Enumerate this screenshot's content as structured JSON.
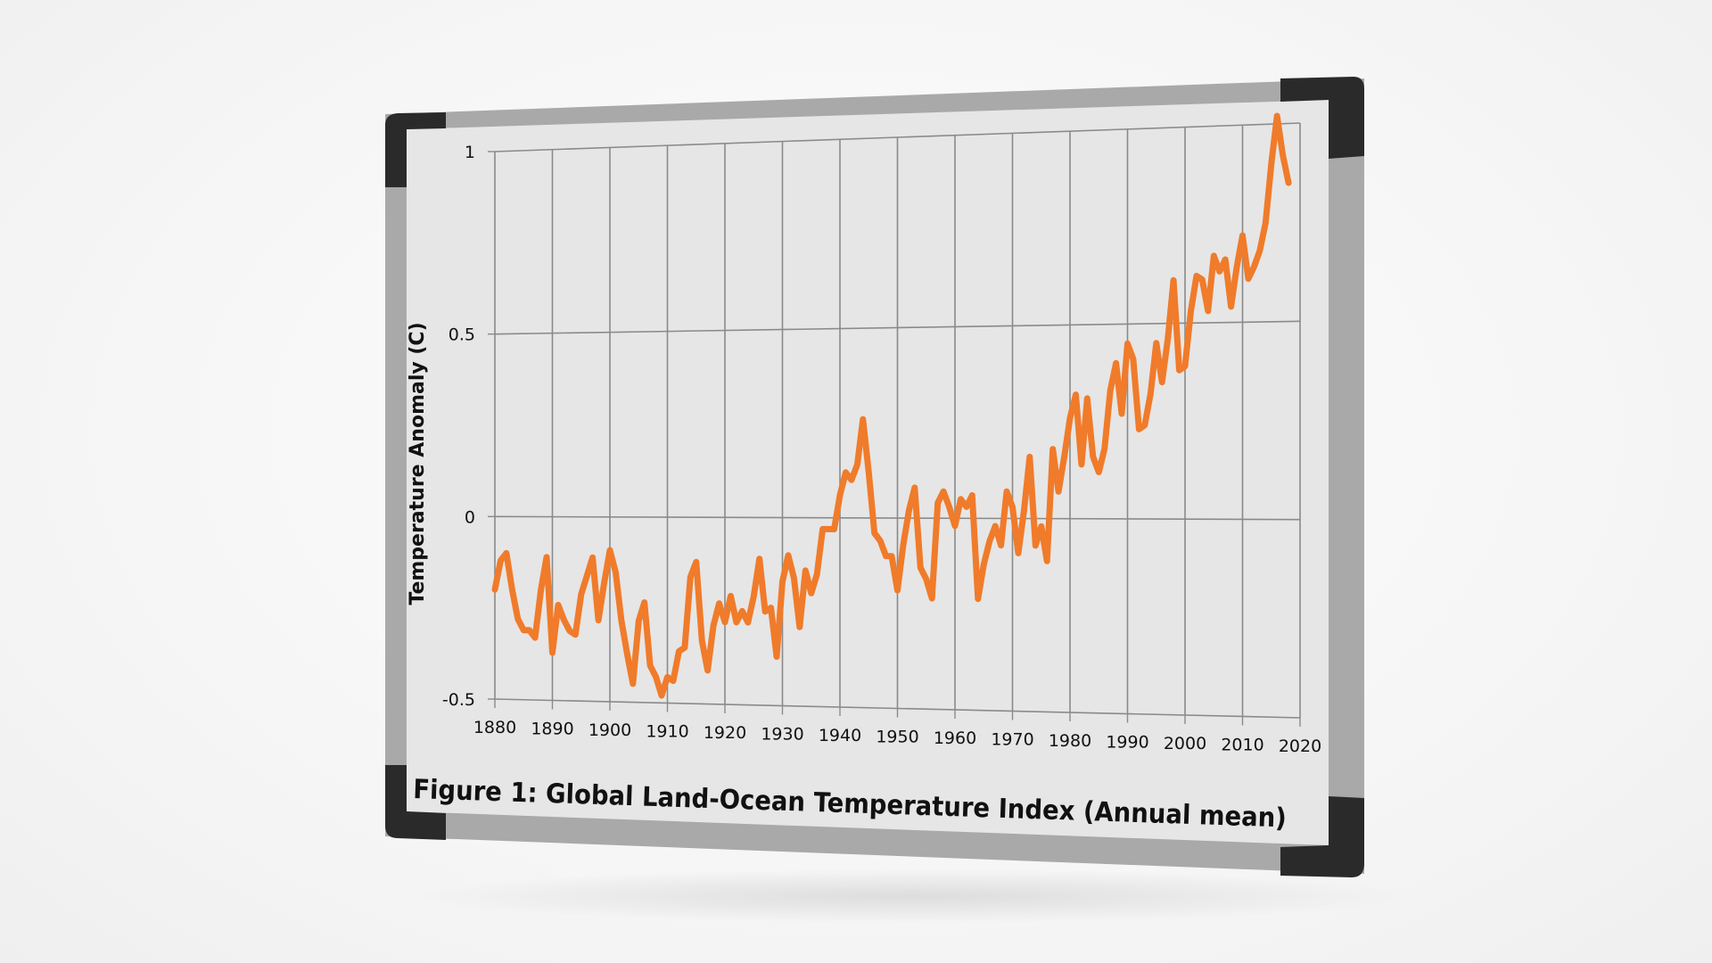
{
  "colors": {
    "line": "#f07b2a",
    "frame": "#a9a9a9",
    "corner": "#2a2a2a",
    "board": "#e6e6e6",
    "grid": "#8a8a8a",
    "text": "#111111"
  },
  "caption": "Figure 1: Global Land-Ocean Temperature Index (Annual mean)",
  "chart_data": {
    "type": "line",
    "title": "Figure 1: Global Land-Ocean Temperature Index (Annual mean)",
    "xlabel": "",
    "ylabel": "Temperature Anomaly (C)",
    "xlim": [
      1880,
      2020
    ],
    "ylim": [
      -0.5,
      1
    ],
    "grid": true,
    "legend": "none",
    "x_ticks": [
      "1880",
      "1890",
      "1900",
      "1910",
      "1920",
      "1930",
      "1940",
      "1950",
      "1960",
      "1970",
      "1980",
      "1990",
      "2000",
      "2010",
      "2020"
    ],
    "y_ticks": [
      "-0.5",
      "0",
      "0.5",
      "1"
    ],
    "series": [
      {
        "x": [
          1880,
          1881,
          1882,
          1883,
          1884,
          1885,
          1886,
          1887,
          1888,
          1889,
          1890,
          1891,
          1892,
          1893,
          1894,
          1895,
          1896,
          1897,
          1898,
          1899,
          1900,
          1901,
          1902,
          1903,
          1904,
          1905,
          1906,
          1907,
          1908,
          1909,
          1910,
          1911,
          1912,
          1913,
          1914,
          1915,
          1916,
          1917,
          1918,
          1919,
          1920,
          1921,
          1922,
          1923,
          1924,
          1925,
          1926,
          1927,
          1928,
          1929,
          1930,
          1931,
          1932,
          1933,
          1934,
          1935,
          1936,
          1937,
          1938,
          1939,
          1940,
          1941,
          1942,
          1943,
          1944,
          1945,
          1946,
          1947,
          1948,
          1949,
          1950,
          1951,
          1952,
          1953,
          1954,
          1955,
          1956,
          1957,
          1958,
          1959,
          1960,
          1961,
          1962,
          1963,
          1964,
          1965,
          1966,
          1967,
          1968,
          1969,
          1970,
          1971,
          1972,
          1973,
          1974,
          1975,
          1976,
          1977,
          1978,
          1979,
          1980,
          1981,
          1982,
          1983,
          1984,
          1985,
          1986,
          1987,
          1988,
          1989,
          1990,
          1991,
          1992,
          1993,
          1994,
          1995,
          1996,
          1997,
          1998,
          1999,
          2000,
          2001,
          2002,
          2003,
          2004,
          2005,
          2006,
          2007,
          2008,
          2009,
          2010,
          2011,
          2012,
          2013,
          2014,
          2015,
          2016,
          2017,
          2018
        ],
        "values": [
          -0.2,
          -0.12,
          -0.1,
          -0.2,
          -0.28,
          -0.31,
          -0.31,
          -0.33,
          -0.2,
          -0.11,
          -0.37,
          -0.24,
          -0.28,
          -0.31,
          -0.32,
          -0.21,
          -0.16,
          -0.11,
          -0.28,
          -0.18,
          -0.09,
          -0.15,
          -0.28,
          -0.37,
          -0.45,
          -0.28,
          -0.23,
          -0.4,
          -0.43,
          -0.48,
          -0.43,
          -0.44,
          -0.36,
          -0.35,
          -0.16,
          -0.12,
          -0.33,
          -0.41,
          -0.29,
          -0.23,
          -0.28,
          -0.21,
          -0.28,
          -0.25,
          -0.28,
          -0.21,
          -0.11,
          -0.25,
          -0.24,
          -0.37,
          -0.17,
          -0.1,
          -0.16,
          -0.29,
          -0.14,
          -0.2,
          -0.15,
          -0.03,
          -0.03,
          -0.03,
          0.06,
          0.12,
          0.1,
          0.14,
          0.26,
          0.12,
          -0.04,
          -0.06,
          -0.1,
          -0.1,
          -0.19,
          -0.07,
          0.02,
          0.08,
          -0.13,
          -0.16,
          -0.21,
          0.04,
          0.07,
          0.03,
          -0.02,
          0.05,
          0.03,
          0.06,
          -0.21,
          -0.12,
          -0.06,
          -0.02,
          -0.07,
          0.07,
          0.03,
          -0.09,
          0.02,
          0.16,
          -0.07,
          -0.02,
          -0.11,
          0.18,
          0.07,
          0.16,
          0.26,
          0.32,
          0.14,
          0.31,
          0.16,
          0.12,
          0.18,
          0.33,
          0.4,
          0.27,
          0.45,
          0.41,
          0.23,
          0.24,
          0.32,
          0.45,
          0.35,
          0.46,
          0.61,
          0.38,
          0.39,
          0.53,
          0.62,
          0.61,
          0.53,
          0.67,
          0.63,
          0.66,
          0.54,
          0.64,
          0.72,
          0.61,
          0.64,
          0.68,
          0.75,
          0.9,
          1.02,
          0.92,
          0.85
        ]
      }
    ]
  }
}
